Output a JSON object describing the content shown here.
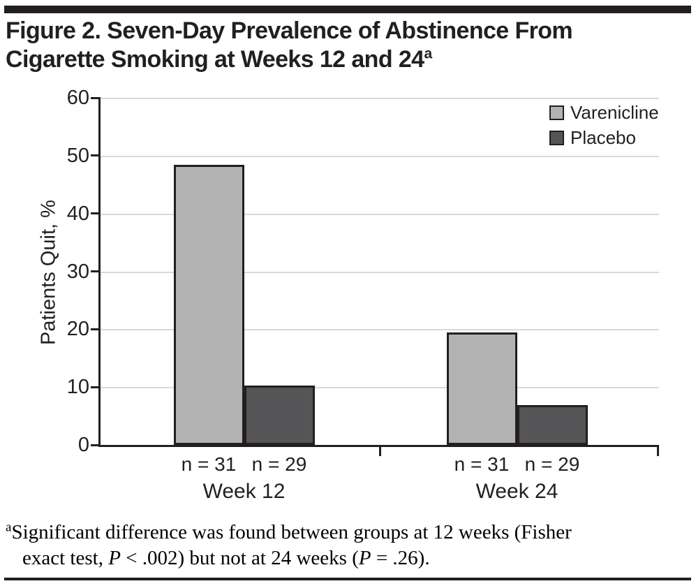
{
  "figure": {
    "title_lines": [
      "Figure 2. Seven-Day Prevalence of Abstinence From",
      "Cigarette Smoking at Weeks 12 and 24"
    ],
    "title_sup": "a"
  },
  "chart_data": {
    "type": "bar",
    "title": "Figure 2. Seven-Day Prevalence of Abstinence From Cigarette Smoking at Weeks 12 and 24",
    "ylabel": "Patients Quit, %",
    "ylim": [
      0,
      60
    ],
    "yticks": [
      0,
      10,
      20,
      30,
      40,
      50,
      60
    ],
    "grid": true,
    "legend_position": "top-right",
    "categories": [
      "Week 12",
      "Week 24"
    ],
    "series": [
      {
        "name": "Varenicline",
        "color": "#b3b3b3",
        "values": [
          48.4,
          19.4
        ]
      },
      {
        "name": "Placebo",
        "color": "#555456",
        "values": [
          10.3,
          6.9
        ]
      }
    ],
    "n_labels": [
      [
        "n = 31",
        "n = 29"
      ],
      [
        "n = 31",
        "n = 29"
      ]
    ],
    "colors": {
      "axis": "#231f20",
      "gridline": "#d9d9d9"
    }
  },
  "footnote": {
    "sup": "a",
    "line1": "Significant difference was found between groups at 12 weeks (Fisher",
    "line2_parts": [
      {
        "t": "exact test, "
      },
      {
        "t": "P",
        "i": true
      },
      {
        "t": " < .002) but not at 24 weeks ("
      },
      {
        "t": "P",
        "i": true
      },
      {
        "t": " = .26)."
      }
    ]
  }
}
